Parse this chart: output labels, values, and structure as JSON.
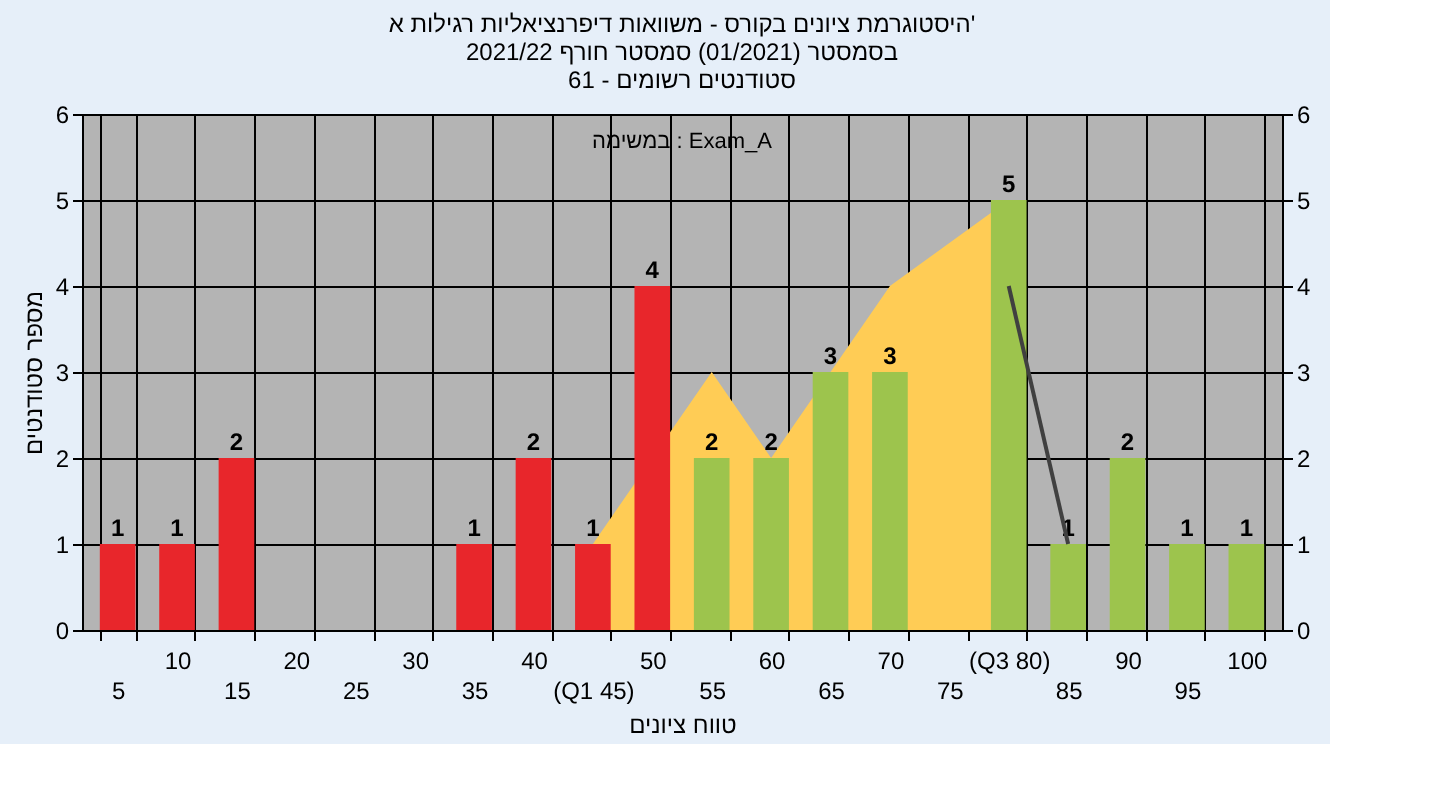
{
  "chart_data": {
    "type": "bar",
    "title": "היסטוגרמת ציונים בקורס - משוואות דיפרנציאליות רגילות א'\nבסמסטר (01/2021) סמסטר חורף 2021/22\nסטודנטים רשומים - 61",
    "xlabel": "טווח ציונים",
    "ylabel": "מספר סטודנטים",
    "annotations": [
      "במשימה : Exam_A"
    ],
    "categories": [
      "5",
      "10",
      "15",
      "20",
      "25",
      "30",
      "35",
      "40",
      "(Q1 45)",
      "50",
      "55",
      "60",
      "65",
      "70",
      "75",
      "(Q3 80)",
      "85",
      "90",
      "95",
      "100"
    ],
    "series": [
      {
        "type": "area",
        "color": "#ffcc55",
        "values": [
          null,
          null,
          null,
          null,
          null,
          null,
          null,
          null,
          1,
          null,
          3,
          2,
          3,
          4,
          4.5,
          5,
          null,
          null,
          null,
          null
        ]
      },
      {
        "values": [
          1,
          1,
          2,
          0,
          0,
          0,
          1,
          2,
          1,
          4,
          2,
          2,
          3,
          3,
          0,
          5,
          1,
          2,
          1,
          1
        ],
        "colors": [
          "#e8262b",
          "#e8262b",
          "#e8262b",
          "#e8262b",
          "#e8262b",
          "#e8262b",
          "#e8262b",
          "#e8262b",
          "#e8262b",
          "#e8262b",
          "#9dc44d",
          "#9dc44d",
          "#9dc44d",
          "#9dc44d",
          "#9dc44d",
          "#9dc44d",
          "#9dc44d",
          "#9dc44d",
          "#9dc44d",
          "#9dc44d"
        ],
        "value_labels": [
          "1",
          "1",
          "2",
          null,
          null,
          null,
          "1",
          "2",
          "1",
          "4",
          "2",
          "2",
          "3",
          "3",
          null,
          "5",
          "1",
          "2",
          "1",
          "1"
        ]
      },
      {
        "type": "line",
        "color": "#404040",
        "values": [
          null,
          null,
          null,
          null,
          null,
          null,
          null,
          null,
          null,
          null,
          null,
          null,
          null,
          null,
          null,
          4,
          1,
          null,
          null,
          null
        ]
      }
    ],
    "ylim": [
      0,
      6
    ],
    "yticks": [
      0,
      1,
      2,
      3,
      4,
      5,
      6
    ],
    "y2lim": [
      0,
      6
    ],
    "y2ticks": [
      0,
      1,
      2,
      3,
      4,
      5,
      6
    ],
    "grid": true
  }
}
